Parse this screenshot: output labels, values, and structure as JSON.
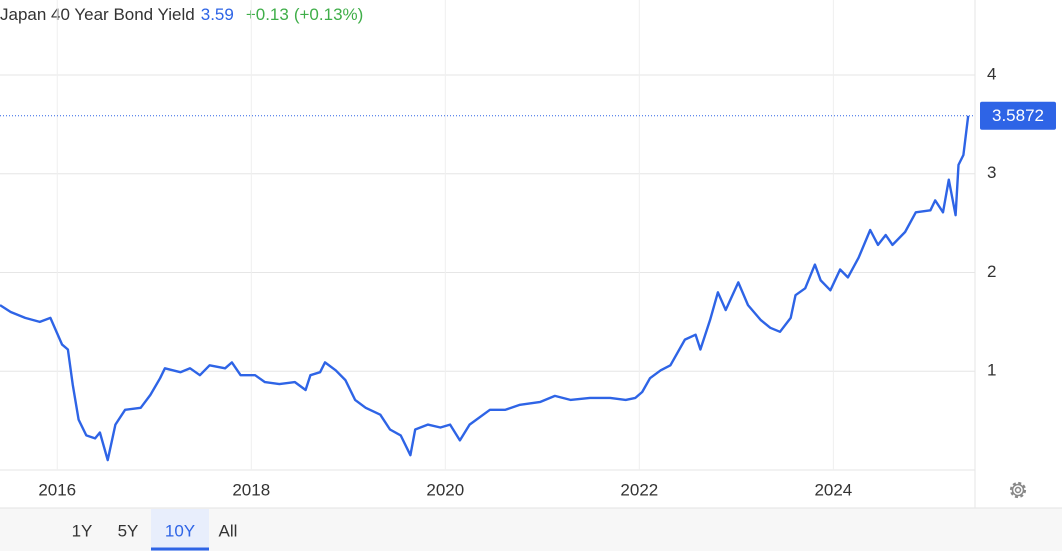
{
  "chart_data": {
    "type": "line",
    "title": "Japan 40 Year Bond Yield",
    "header_value": "3.59",
    "change": "+0.13",
    "change_pct": "(+0.13%)",
    "current_value": 3.5872,
    "current_value_label": "3.5872",
    "x": [
      2015.41,
      2015.52,
      2015.67,
      2015.82,
      2015.93,
      2016.05,
      2016.11,
      2016.16,
      2016.22,
      2016.3,
      2016.39,
      2016.44,
      2016.52,
      2016.6,
      2016.7,
      2016.86,
      2016.96,
      2017.06,
      2017.11,
      2017.27,
      2017.37,
      2017.47,
      2017.57,
      2017.73,
      2017.8,
      2017.89,
      2018.04,
      2018.14,
      2018.29,
      2018.45,
      2018.56,
      2018.61,
      2018.71,
      2018.76,
      2018.87,
      2018.97,
      2019.07,
      2019.18,
      2019.33,
      2019.43,
      2019.54,
      2019.64,
      2019.69,
      2019.82,
      2019.95,
      2020.05,
      2020.15,
      2020.25,
      2020.46,
      2020.62,
      2020.77,
      2020.98,
      2021.13,
      2021.29,
      2021.49,
      2021.7,
      2021.86,
      2021.96,
      2022.03,
      2022.11,
      2022.22,
      2022.32,
      2022.47,
      2022.58,
      2022.63,
      2022.73,
      2022.81,
      2022.89,
      2023.02,
      2023.12,
      2023.25,
      2023.35,
      2023.45,
      2023.56,
      2023.61,
      2023.71,
      2023.81,
      2023.87,
      2023.97,
      2024.07,
      2024.15,
      2024.26,
      2024.38,
      2024.46,
      2024.54,
      2024.61,
      2024.74,
      2024.85,
      2025.0,
      2025.05,
      2025.13,
      2025.19,
      2025.26,
      2025.29,
      2025.34,
      2025.39
    ],
    "series": [
      {
        "name": "Japan 40 Year Bond Yield",
        "color": "#2e64e6",
        "values": [
          1.67,
          1.6,
          1.54,
          1.5,
          1.54,
          1.27,
          1.22,
          0.86,
          0.51,
          0.35,
          0.32,
          0.38,
          0.1,
          0.46,
          0.61,
          0.63,
          0.76,
          0.93,
          1.03,
          0.99,
          1.03,
          0.96,
          1.06,
          1.03,
          1.09,
          0.96,
          0.96,
          0.89,
          0.87,
          0.89,
          0.81,
          0.96,
          0.99,
          1.09,
          1.01,
          0.91,
          0.71,
          0.63,
          0.56,
          0.41,
          0.35,
          0.15,
          0.41,
          0.46,
          0.43,
          0.46,
          0.3,
          0.46,
          0.61,
          0.61,
          0.66,
          0.69,
          0.75,
          0.71,
          0.73,
          0.73,
          0.71,
          0.73,
          0.79,
          0.93,
          1.01,
          1.06,
          1.32,
          1.37,
          1.22,
          1.52,
          1.8,
          1.62,
          1.9,
          1.67,
          1.52,
          1.44,
          1.4,
          1.54,
          1.77,
          1.84,
          2.08,
          1.92,
          1.82,
          2.03,
          1.95,
          2.15,
          2.43,
          2.28,
          2.38,
          2.28,
          2.41,
          2.61,
          2.63,
          2.73,
          2.61,
          2.94,
          2.58,
          3.09,
          3.19,
          3.5872
        ]
      }
    ],
    "xlim": [
      2015.41,
      2025.46
    ],
    "xticks": [
      2016,
      2018,
      2020,
      2022,
      2024
    ],
    "ylim": [
      0,
      4.6
    ],
    "yticks": [
      1,
      2,
      3,
      4
    ],
    "grid": true,
    "range_buttons": [
      "1Y",
      "5Y",
      "10Y",
      "All"
    ],
    "active_range": "10Y",
    "header_value_color": "#2e64e6",
    "change_color": "#3fae49"
  }
}
